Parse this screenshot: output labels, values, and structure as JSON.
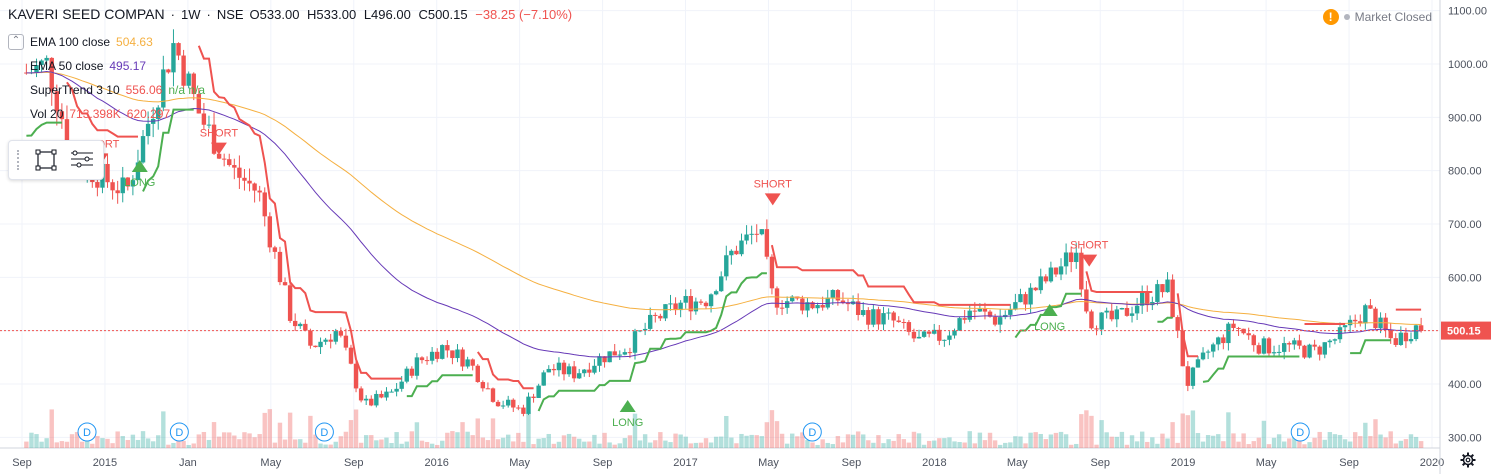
{
  "header": {
    "symbol": "KAVERI SEED COMPAN",
    "interval": "1W",
    "exchange": "NSE",
    "ohlc": {
      "open": "O533.00",
      "high": "H533.00",
      "low": "L496.00",
      "close": "C500.15",
      "change": "−38.25 (−7.10%)"
    }
  },
  "market_status": {
    "icon": "warning-icon",
    "label": "Market Closed"
  },
  "indicators": [
    {
      "label": "EMA 100 close",
      "value": "504.63",
      "color": "#f5b041"
    },
    {
      "label": "EMA 50 close",
      "value": "495.17",
      "color": "#673ab7"
    },
    {
      "label": "SuperTrend 3 10",
      "value": "556.06",
      "extra": "n/a  n/a",
      "color": "#ef5350"
    },
    {
      "label": "Vol 20",
      "value": "713.398K",
      "value2": "620.297",
      "color": "#ef5350"
    }
  ],
  "toolbox": {
    "rect_tool": "rectangle-tool-icon",
    "menu_tool": "lines-menu-icon"
  },
  "colors": {
    "up": "#26a69a",
    "down": "#ef5350",
    "ema100": "#f5b041",
    "ema50": "#673ab7",
    "st_up": "#4caf50",
    "st_down": "#ef5350",
    "grid": "#f0f3fa",
    "axis_text": "#4c525e"
  },
  "chart_data": {
    "type": "candlestick",
    "y_axis": {
      "ticks": [
        "1100.00",
        "1000.00",
        "900.00",
        "800.00",
        "700.00",
        "600.00",
        "500.00",
        "400.00",
        "300.00"
      ],
      "ylim": [
        280,
        1120
      ]
    },
    "x_axis": {
      "ticks": [
        "Sep",
        "2015",
        "Jan",
        "May",
        "Sep",
        "2016",
        "May",
        "Sep",
        "2017",
        "May",
        "Sep",
        "2018",
        "May",
        "Sep",
        "2019",
        "May",
        "Sep",
        "2020"
      ]
    },
    "last_price": {
      "value": 500.15,
      "label": "500.15"
    },
    "signals": [
      {
        "label": "SHORT",
        "price": 810,
        "type": "short",
        "t": 2015.0
      },
      {
        "label": "LONG",
        "price": 820,
        "type": "long",
        "t": 2015.15
      },
      {
        "label": "SHORT",
        "price": 830,
        "type": "short",
        "t": 2015.45
      },
      {
        "label": "SHORT",
        "price": 735,
        "type": "short",
        "t": 2017.55
      },
      {
        "label": "LONG",
        "price": 370,
        "type": "long",
        "t": 2017.0
      },
      {
        "label": "SHORT",
        "price": 620,
        "type": "short",
        "t": 2018.75
      },
      {
        "label": "LONG",
        "price": 550,
        "type": "long",
        "t": 2018.6
      }
    ],
    "dividend_markers": [
      {
        "label": "D",
        "t": 2014.95
      },
      {
        "label": "D",
        "t": 2015.3
      },
      {
        "label": "D",
        "t": 2015.85
      },
      {
        "label": "D",
        "t": 2017.7
      },
      {
        "label": "D",
        "t": 2019.55
      }
    ],
    "close_path": [
      [
        2014.7,
        980
      ],
      [
        2014.8,
        1000
      ],
      [
        2014.9,
        820
      ],
      [
        2015.0,
        790
      ],
      [
        2015.1,
        760
      ],
      [
        2015.2,
        920
      ],
      [
        2015.28,
        1040
      ],
      [
        2015.38,
        900
      ],
      [
        2015.5,
        800
      ],
      [
        2015.6,
        760
      ],
      [
        2015.72,
        530
      ],
      [
        2015.8,
        470
      ],
      [
        2015.9,
        500
      ],
      [
        2016.0,
        360
      ],
      [
        2016.1,
        380
      ],
      [
        2016.2,
        440
      ],
      [
        2016.3,
        470
      ],
      [
        2016.4,
        440
      ],
      [
        2016.5,
        370
      ],
      [
        2016.6,
        350
      ],
      [
        2016.7,
        430
      ],
      [
        2016.8,
        420
      ],
      [
        2016.9,
        450
      ],
      [
        2017.0,
        470
      ],
      [
        2017.1,
        520
      ],
      [
        2017.2,
        550
      ],
      [
        2017.3,
        560
      ],
      [
        2017.4,
        650
      ],
      [
        2017.5,
        690
      ],
      [
        2017.55,
        560
      ],
      [
        2017.7,
        550
      ],
      [
        2017.8,
        560
      ],
      [
        2017.9,
        530
      ],
      [
        2018.0,
        520
      ],
      [
        2018.1,
        480
      ],
      [
        2018.2,
        490
      ],
      [
        2018.3,
        540
      ],
      [
        2018.4,
        520
      ],
      [
        2018.5,
        560
      ],
      [
        2018.6,
        600
      ],
      [
        2018.7,
        650
      ],
      [
        2018.75,
        520
      ],
      [
        2018.85,
        520
      ],
      [
        2018.95,
        560
      ],
      [
        2019.05,
        580
      ],
      [
        2019.12,
        400
      ],
      [
        2019.2,
        460
      ],
      [
        2019.3,
        510
      ],
      [
        2019.4,
        470
      ],
      [
        2019.5,
        470
      ],
      [
        2019.6,
        460
      ],
      [
        2019.7,
        490
      ],
      [
        2019.8,
        540
      ],
      [
        2019.9,
        480
      ],
      [
        2020.0,
        510
      ],
      [
        2020.02,
        500
      ]
    ]
  }
}
